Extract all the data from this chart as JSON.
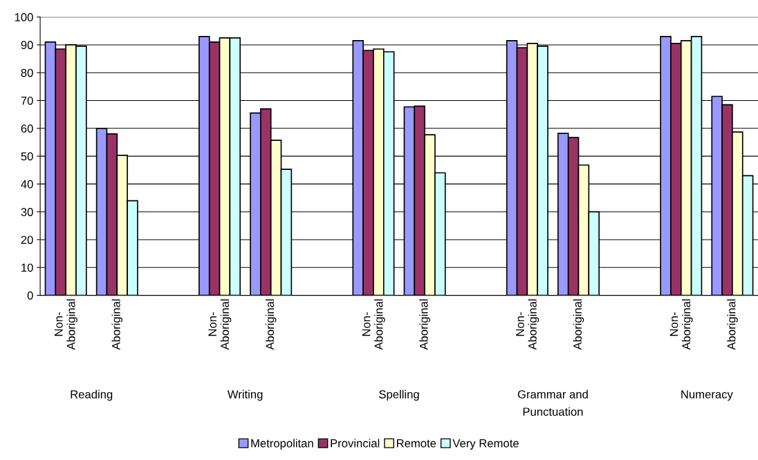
{
  "chart_data": {
    "type": "bar",
    "categories": [
      "Non-\nAboriginal",
      "Aboriginal",
      null,
      "Non-\nAboriginal",
      "Aboriginal",
      null,
      "Non-\nAboriginal",
      "Aboriginal",
      null,
      "Non-\nAboriginal",
      "Aboriginal",
      null,
      "Non-\nAboriginal",
      "Aboriginal"
    ],
    "series": [
      {
        "name": "Metropolitan",
        "color": "#9999ff",
        "values": [
          91,
          60,
          null,
          93,
          65.5,
          null,
          91.5,
          67.7,
          null,
          91.5,
          58.2,
          null,
          93,
          71.5
        ]
      },
      {
        "name": "Provincial",
        "color": "#993366",
        "values": [
          88.5,
          58,
          null,
          91,
          67,
          null,
          88,
          68,
          null,
          89,
          56.7,
          null,
          90.5,
          68.5
        ]
      },
      {
        "name": "Remote",
        "color": "#ffffcc",
        "values": [
          90,
          50.3,
          null,
          92.5,
          55.7,
          null,
          88.5,
          57.7,
          null,
          90.5,
          46.8,
          null,
          91.5,
          58.7
        ]
      },
      {
        "name": "Very Remote",
        "color": "#ccffff",
        "values": [
          89.5,
          34,
          null,
          92.5,
          45.3,
          null,
          87.5,
          44,
          null,
          89.5,
          30,
          null,
          93,
          43
        ]
      }
    ],
    "annotations": [
      "Reading",
      "Writing",
      "Spelling",
      "Grammar and\nPunctuation",
      "Numeracy"
    ],
    "ylim": [
      0,
      100
    ],
    "yticks": [
      0,
      10,
      20,
      30,
      40,
      50,
      60,
      70,
      80,
      90,
      100
    ],
    "grid": "y",
    "legend": "bottom"
  }
}
